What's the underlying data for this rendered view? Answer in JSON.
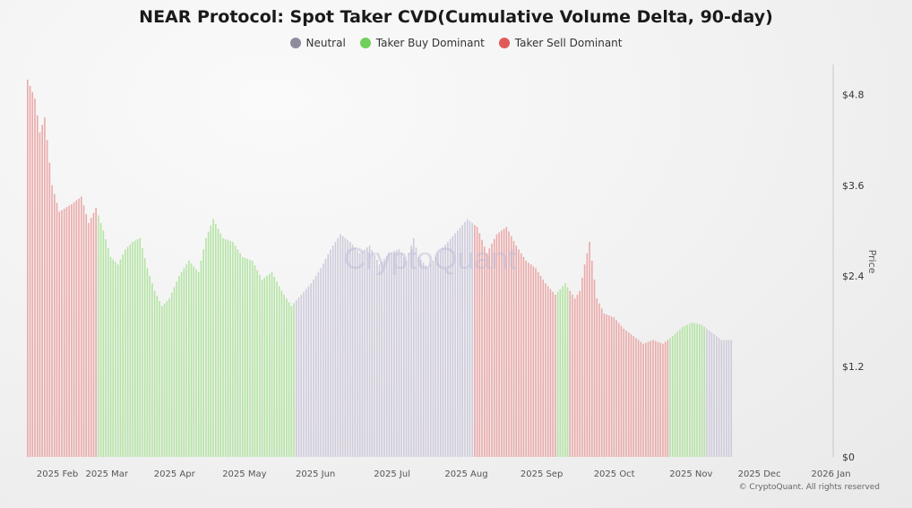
{
  "chart_data": {
    "type": "bar",
    "title": "NEAR Protocol: Spot Taker CVD(Cumulative Volume Delta, 90-day)",
    "ylabel": "Price",
    "ylim": [
      0,
      5.2
    ],
    "y_ticks": [
      "$0",
      "$1.2",
      "$2.4",
      "$3.6",
      "$4.8"
    ],
    "y_tick_values": [
      0,
      1.2,
      2.4,
      3.6,
      4.8
    ],
    "x_ticks": [
      "2025 Feb",
      "2025 Mar",
      "2025 Apr",
      "2025 May",
      "2025 Jun",
      "2025 Jul",
      "2025 Aug",
      "2025 Sep",
      "2025 Oct",
      "2025 Nov",
      "2025 Dec",
      "2026 Jan"
    ],
    "x_tick_days": [
      4,
      24,
      52,
      80,
      110,
      142,
      171,
      202,
      232,
      263,
      291,
      321
    ],
    "legend": [
      {
        "name": "Neutral",
        "color": "#8f8c9c"
      },
      {
        "name": "Taker Buy Dominant",
        "color": "#6fcf5a"
      },
      {
        "name": "Taker Sell Dominant",
        "color": "#e05a5a"
      }
    ],
    "series_colors": {
      "neutral": "#cfcbdb",
      "buy": "#b4e4a4",
      "sell": "#eba9a9"
    },
    "grid": false,
    "anchors": [
      [
        0,
        5.0
      ],
      [
        3,
        4.75
      ],
      [
        5,
        4.3
      ],
      [
        7,
        4.5
      ],
      [
        10,
        3.6
      ],
      [
        13,
        3.25
      ],
      [
        18,
        3.35
      ],
      [
        22,
        3.45
      ],
      [
        25,
        3.1
      ],
      [
        28,
        3.3
      ],
      [
        31,
        3.0
      ],
      [
        34,
        2.65
      ],
      [
        37,
        2.55
      ],
      [
        40,
        2.75
      ],
      [
        43,
        2.85
      ],
      [
        46,
        2.9
      ],
      [
        49,
        2.5
      ],
      [
        52,
        2.2
      ],
      [
        55,
        2.0
      ],
      [
        58,
        2.1
      ],
      [
        62,
        2.4
      ],
      [
        66,
        2.6
      ],
      [
        70,
        2.45
      ],
      [
        73,
        2.9
      ],
      [
        76,
        3.15
      ],
      [
        80,
        2.9
      ],
      [
        84,
        2.85
      ],
      [
        88,
        2.65
      ],
      [
        92,
        2.6
      ],
      [
        96,
        2.35
      ],
      [
        100,
        2.45
      ],
      [
        104,
        2.2
      ],
      [
        108,
        2.0
      ],
      [
        112,
        2.15
      ],
      [
        116,
        2.3
      ],
      [
        120,
        2.5
      ],
      [
        124,
        2.75
      ],
      [
        128,
        2.95
      ],
      [
        132,
        2.85
      ],
      [
        136,
        2.7
      ],
      [
        140,
        2.8
      ],
      [
        144,
        2.55
      ],
      [
        148,
        2.7
      ],
      [
        152,
        2.75
      ],
      [
        155,
        2.6
      ],
      [
        158,
        2.9
      ],
      [
        160,
        2.65
      ],
      [
        164,
        2.5
      ],
      [
        168,
        2.7
      ],
      [
        172,
        2.85
      ],
      [
        176,
        3.0
      ],
      [
        180,
        3.15
      ],
      [
        184,
        3.05
      ],
      [
        188,
        2.7
      ],
      [
        192,
        2.95
      ],
      [
        196,
        3.05
      ],
      [
        200,
        2.8
      ],
      [
        204,
        2.6
      ],
      [
        208,
        2.5
      ],
      [
        212,
        2.3
      ],
      [
        216,
        2.15
      ],
      [
        220,
        2.3
      ],
      [
        224,
        2.1
      ],
      [
        226,
        2.2
      ],
      [
        228,
        2.55
      ],
      [
        230,
        2.85
      ],
      [
        233,
        2.1
      ],
      [
        236,
        1.9
      ],
      [
        240,
        1.85
      ],
      [
        244,
        1.7
      ],
      [
        248,
        1.6
      ],
      [
        252,
        1.5
      ],
      [
        256,
        1.55
      ],
      [
        260,
        1.5
      ],
      [
        264,
        1.6
      ],
      [
        268,
        1.72
      ],
      [
        272,
        1.78
      ],
      [
        276,
        1.75
      ],
      [
        280,
        1.65
      ],
      [
        284,
        1.55
      ]
    ],
    "segments": [
      {
        "from": 0,
        "to": 10,
        "class": "sell"
      },
      {
        "from": 11,
        "to": 37,
        "class": "buy"
      },
      {
        "from": 38,
        "to": 61,
        "class": "neutral"
      },
      {
        "from": 62,
        "to": 82,
        "class": "neutral"
      },
      {
        "from": 83,
        "to": 103,
        "class": "sell"
      },
      {
        "from": 104,
        "to": 130,
        "class": "sell"
      },
      {
        "from": 131,
        "to": 134,
        "class": "buy"
      },
      {
        "from": 135,
        "to": 149,
        "class": "buy"
      },
      {
        "from": 150,
        "to": 160,
        "class": "neutral"
      },
      {
        "from": 161,
        "to": 175,
        "class": "buy"
      }
    ]
  },
  "watermark": "CryptoQuant",
  "copyright": "© CryptoQuant. All rights reserved"
}
